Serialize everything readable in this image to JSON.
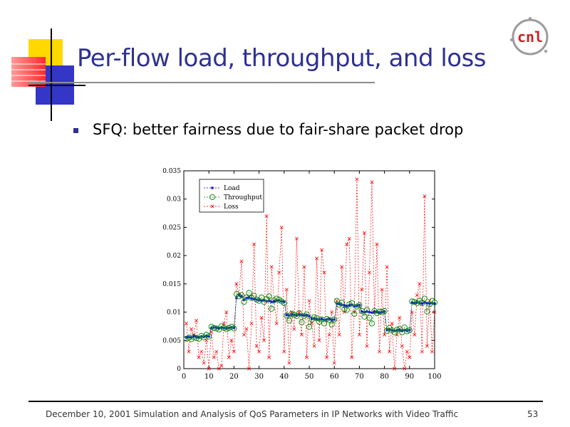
{
  "slide": {
    "title": "Per-flow load, throughput, and loss",
    "bullet": "SFQ: better fairness due to fair-share packet drop",
    "footer": "December 10, 2001 Simulation and Analysis of QoS Parameters in IP Networks with Video Traffic",
    "page_number": "53",
    "logo_text": "cnl",
    "colors": {
      "title": "#2e3191",
      "logo": "#cc2222"
    }
  },
  "chart_data": {
    "type": "line",
    "xlim": [
      0,
      100
    ],
    "ylim": [
      0,
      0.035
    ],
    "xticks": [
      "0",
      "10",
      "20",
      "30",
      "40",
      "50",
      "60",
      "70",
      "80",
      "90",
      "100"
    ],
    "yticks": [
      "0",
      "0.005",
      "0.01",
      "0.015",
      "0.02",
      "0.025",
      "0.03",
      "0.035"
    ],
    "grid": false,
    "legend_position": "top-left",
    "series": [
      {
        "name": "Load",
        "color": "#0000ff",
        "marker": "star",
        "x": [
          1,
          2,
          3,
          4,
          5,
          6,
          7,
          8,
          9,
          10,
          11,
          12,
          13,
          14,
          15,
          16,
          17,
          18,
          19,
          20,
          21,
          22,
          23,
          24,
          25,
          26,
          27,
          28,
          29,
          30,
          31,
          32,
          33,
          34,
          35,
          36,
          37,
          38,
          39,
          40,
          41,
          42,
          43,
          44,
          45,
          46,
          47,
          48,
          49,
          50,
          51,
          52,
          53,
          54,
          55,
          56,
          57,
          58,
          59,
          60,
          61,
          62,
          63,
          64,
          65,
          66,
          67,
          68,
          69,
          70,
          71,
          72,
          73,
          74,
          75,
          76,
          77,
          78,
          79,
          80,
          81,
          82,
          83,
          84,
          85,
          86,
          87,
          88,
          89,
          90,
          91,
          92,
          93,
          94,
          95,
          96,
          97,
          98,
          99,
          100
        ],
        "y": [
          0.0055,
          0.0056,
          0.0055,
          0.0057,
          0.0056,
          0.0055,
          0.0057,
          0.0056,
          0.0058,
          0.0057,
          0.0072,
          0.0073,
          0.0072,
          0.0071,
          0.0073,
          0.0072,
          0.0071,
          0.0072,
          0.0073,
          0.0072,
          0.0125,
          0.013,
          0.0128,
          0.0122,
          0.0125,
          0.0126,
          0.0124,
          0.0123,
          0.0122,
          0.0121,
          0.012,
          0.0121,
          0.0119,
          0.012,
          0.0118,
          0.0119,
          0.012,
          0.0121,
          0.0119,
          0.0118,
          0.0095,
          0.0094,
          0.0096,
          0.0095,
          0.0094,
          0.0096,
          0.0095,
          0.0094,
          0.0095,
          0.0093,
          0.0088,
          0.0089,
          0.0088,
          0.0087,
          0.0088,
          0.0086,
          0.0087,
          0.0088,
          0.0086,
          0.0087,
          0.0115,
          0.0114,
          0.0113,
          0.0112,
          0.0111,
          0.0112,
          0.0113,
          0.011,
          0.0111,
          0.0112,
          0.0101,
          0.01,
          0.0101,
          0.01,
          0.0099,
          0.0101,
          0.01,
          0.0099,
          0.01,
          0.0101,
          0.0068,
          0.0069,
          0.0068,
          0.0067,
          0.0068,
          0.0069,
          0.0067,
          0.0068,
          0.0067,
          0.0068,
          0.0117,
          0.0116,
          0.0117,
          0.0116,
          0.0115,
          0.0117,
          0.0116,
          0.0115,
          0.0116,
          0.0115
        ]
      },
      {
        "name": "Throughput",
        "color": "#008000",
        "marker": "circle",
        "x": [
          1,
          2,
          3,
          4,
          5,
          6,
          7,
          8,
          9,
          10,
          11,
          12,
          13,
          14,
          15,
          16,
          17,
          18,
          19,
          20,
          21,
          22,
          23,
          24,
          25,
          26,
          27,
          28,
          29,
          30,
          31,
          32,
          33,
          34,
          35,
          36,
          37,
          38,
          39,
          40,
          41,
          42,
          43,
          44,
          45,
          46,
          47,
          48,
          49,
          50,
          51,
          52,
          53,
          54,
          55,
          56,
          57,
          58,
          59,
          60,
          61,
          62,
          63,
          64,
          65,
          66,
          67,
          68,
          69,
          70,
          71,
          72,
          73,
          74,
          75,
          76,
          77,
          78,
          79,
          80,
          81,
          82,
          83,
          84,
          85,
          86,
          87,
          88,
          89,
          90,
          91,
          92,
          93,
          94,
          95,
          96,
          97,
          98,
          99,
          100
        ],
        "y": [
          0.0053,
          0.0055,
          0.0052,
          0.0056,
          0.0054,
          0.0053,
          0.0058,
          0.0055,
          0.006,
          0.0057,
          0.0074,
          0.0072,
          0.0071,
          0.0069,
          0.0075,
          0.0072,
          0.007,
          0.0072,
          0.0074,
          0.0071,
          0.0132,
          0.0128,
          0.013,
          0.0118,
          0.0126,
          0.0134,
          0.0125,
          0.0129,
          0.0122,
          0.012,
          0.0126,
          0.0118,
          0.0123,
          0.0128,
          0.0106,
          0.0121,
          0.0124,
          0.0122,
          0.0119,
          0.0116,
          0.0094,
          0.0085,
          0.0097,
          0.0095,
          0.0093,
          0.0098,
          0.0082,
          0.0093,
          0.0096,
          0.0074,
          0.0087,
          0.0091,
          0.0089,
          0.0083,
          0.0087,
          0.008,
          0.0088,
          0.0086,
          0.0078,
          0.0087,
          0.012,
          0.0113,
          0.0117,
          0.0105,
          0.0104,
          0.0114,
          0.0116,
          0.0097,
          0.011,
          0.0112,
          0.0102,
          0.0092,
          0.0104,
          0.009,
          0.008,
          0.0102,
          0.0098,
          0.0101,
          0.01,
          0.0102,
          0.0067,
          0.0072,
          0.0068,
          0.0064,
          0.0069,
          0.007,
          0.0064,
          0.0073,
          0.0066,
          0.0068,
          0.0119,
          0.0118,
          0.0116,
          0.012,
          0.0116,
          0.0124,
          0.0101,
          0.0114,
          0.012,
          0.0117
        ]
      },
      {
        "name": "Loss",
        "color": "#ff0000",
        "marker": "x",
        "x": [
          1,
          2,
          3,
          4,
          5,
          6,
          7,
          8,
          9,
          10,
          11,
          12,
          13,
          14,
          15,
          16,
          17,
          18,
          19,
          20,
          21,
          22,
          23,
          24,
          25,
          26,
          27,
          28,
          29,
          30,
          31,
          32,
          33,
          34,
          35,
          36,
          37,
          38,
          39,
          40,
          41,
          42,
          43,
          44,
          45,
          46,
          47,
          48,
          49,
          50,
          51,
          52,
          53,
          54,
          55,
          56,
          57,
          58,
          59,
          60,
          61,
          62,
          63,
          64,
          65,
          66,
          67,
          68,
          69,
          70,
          71,
          72,
          73,
          74,
          75,
          76,
          77,
          78,
          79,
          80,
          81,
          82,
          83,
          84,
          85,
          86,
          87,
          88,
          89,
          90,
          91,
          92,
          93,
          94,
          95,
          96,
          97,
          98,
          99,
          100
        ],
        "y": [
          0.008,
          0.003,
          0.007,
          0.006,
          0.0085,
          0.002,
          0.003,
          0.001,
          0.005,
          0.0,
          0.0065,
          0.002,
          0.003,
          0.0,
          0.0005,
          0.008,
          0.01,
          0.002,
          0.005,
          0.003,
          0.015,
          0.013,
          0.019,
          0.006,
          0.007,
          0.0,
          0.008,
          0.022,
          0.004,
          0.003,
          0.009,
          0.005,
          0.027,
          0.002,
          0.018,
          0.012,
          0.008,
          0.017,
          0.025,
          0.003,
          0.014,
          0.001,
          0.01,
          0.007,
          0.023,
          0.01,
          0.006,
          0.018,
          0.002,
          0.012,
          0.008,
          0.004,
          0.0195,
          0.005,
          0.021,
          0.017,
          0.002,
          0.006,
          0.01,
          0.001,
          0.012,
          0.006,
          0.018,
          0.01,
          0.022,
          0.023,
          0.002,
          0.01,
          0.0335,
          0.006,
          0.014,
          0.024,
          0.004,
          0.017,
          0.033,
          0.01,
          0.022,
          0.003,
          0.014,
          0.006,
          0.018,
          0.003,
          0.008,
          0.0,
          0.006,
          0.009,
          0.004,
          0.0,
          0.003,
          0.002,
          0.01,
          0.006,
          0.013,
          0.015,
          0.003,
          0.0305,
          0.004,
          0.012,
          0.003,
          0.01
        ]
      }
    ]
  }
}
